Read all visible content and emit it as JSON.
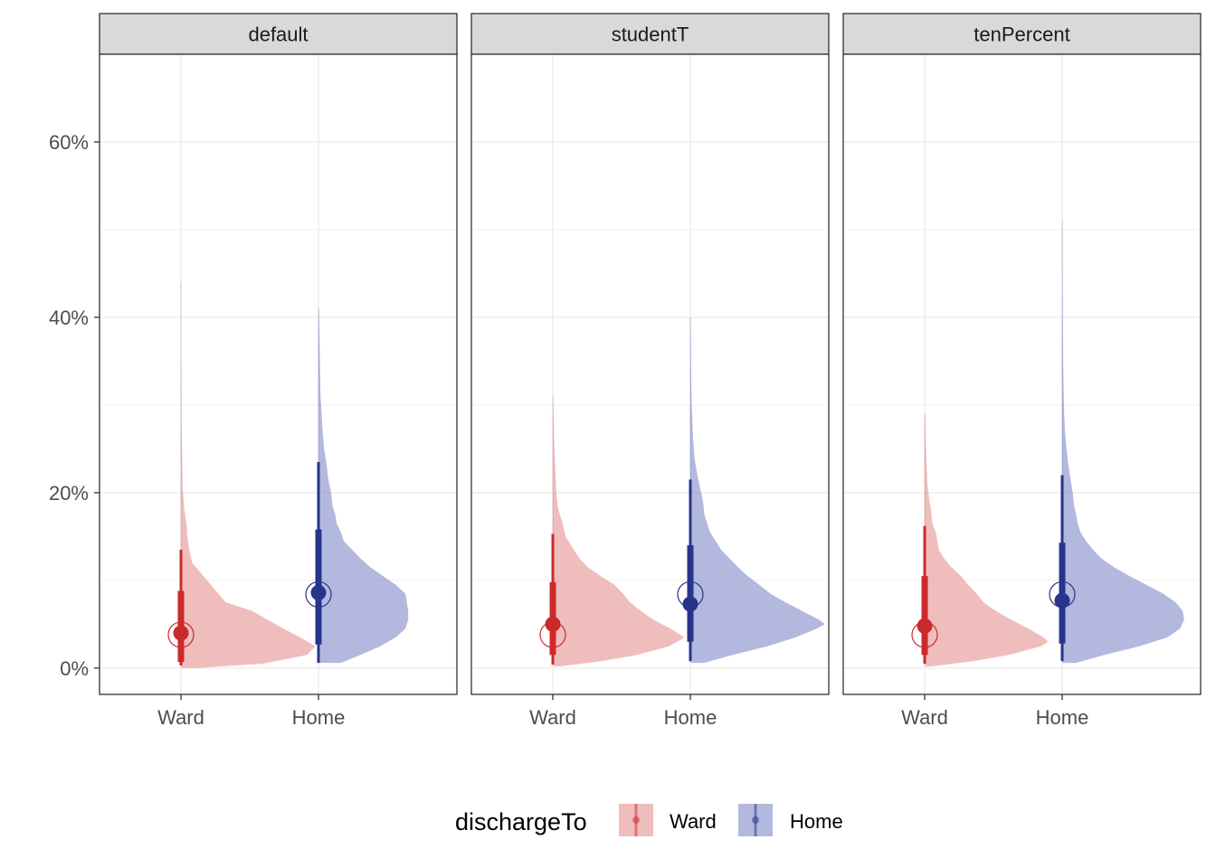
{
  "chart_data": {
    "type": "halfeye",
    "y_axis": {
      "range": [
        -3,
        70
      ],
      "major_ticks": [
        0,
        20,
        40,
        60
      ],
      "minor_ticks": [
        10,
        30,
        50
      ],
      "tick_labels": [
        "0%",
        "20%",
        "40%",
        "60%"
      ]
    },
    "categories": [
      "Ward",
      "Home"
    ],
    "grid": true,
    "legend": {
      "title": "dischargeTo",
      "position": "bottom",
      "entries": [
        {
          "label": "Ward",
          "color": "#cc2a2a",
          "fill": "#e89a9a"
        },
        {
          "label": "Home",
          "color": "#27348b",
          "fill": "#8b92cc"
        }
      ]
    },
    "panels": [
      {
        "name": "default",
        "series": [
          {
            "name": "Ward",
            "median": 4.0,
            "observed": 3.8,
            "interval_66": [
              0.7,
              8.8
            ],
            "interval_95": [
              0.3,
              13.5
            ],
            "tail_max": 44,
            "density": [
              [
                0,
                0.1
              ],
              [
                0.5,
                0.58
              ],
              [
                1.5,
                0.9
              ],
              [
                2.5,
                0.96
              ],
              [
                3.5,
                0.85
              ],
              [
                4.5,
                0.73
              ],
              [
                5.5,
                0.62
              ],
              [
                6.5,
                0.51
              ],
              [
                7.5,
                0.32
              ],
              [
                9,
                0.24
              ],
              [
                10.5,
                0.16
              ],
              [
                12,
                0.08
              ],
              [
                13.5,
                0.06
              ],
              [
                15,
                0.045
              ],
              [
                16.5,
                0.04
              ],
              [
                18,
                0.025
              ],
              [
                19,
                0.02
              ],
              [
                20.5,
                0.012
              ],
              [
                22.5,
                0.01
              ],
              [
                25,
                0.008
              ],
              [
                28,
                0.004
              ],
              [
                33,
                0.002
              ],
              [
                38,
                0.001
              ],
              [
                44,
                0.0005
              ]
            ]
          },
          {
            "name": "Home",
            "median": 8.6,
            "observed": 8.4,
            "interval_66": [
              2.7,
              15.8
            ],
            "interval_95": [
              0.6,
              23.5
            ],
            "tail_max": 41,
            "density": [
              [
                0.6,
                0.16
              ],
              [
                1.5,
                0.3
              ],
              [
                2.5,
                0.44
              ],
              [
                3.5,
                0.55
              ],
              [
                4.5,
                0.62
              ],
              [
                5.5,
                0.64
              ],
              [
                6.5,
                0.64
              ],
              [
                7.5,
                0.63
              ],
              [
                8.5,
                0.62
              ],
              [
                9.5,
                0.55
              ],
              [
                10.5,
                0.46
              ],
              [
                11.5,
                0.37
              ],
              [
                12.5,
                0.3
              ],
              [
                13.5,
                0.24
              ],
              [
                14.5,
                0.18
              ],
              [
                15.5,
                0.16
              ],
              [
                16.5,
                0.13
              ],
              [
                17.5,
                0.12
              ],
              [
                18.5,
                0.1
              ],
              [
                20,
                0.09
              ],
              [
                21.5,
                0.07
              ],
              [
                23,
                0.06
              ],
              [
                25,
                0.04
              ],
              [
                27,
                0.03
              ],
              [
                29,
                0.022
              ],
              [
                31,
                0.015
              ],
              [
                33,
                0.012
              ],
              [
                35,
                0.01
              ],
              [
                37,
                0.008
              ],
              [
                39,
                0.005
              ],
              [
                41,
                0.002
              ]
            ]
          }
        ]
      },
      {
        "name": "studentT",
        "series": [
          {
            "name": "Ward",
            "median": 5.0,
            "observed": 3.8,
            "interval_66": [
              1.5,
              9.8
            ],
            "interval_95": [
              0.4,
              15.3
            ],
            "tail_max": 31,
            "density": [
              [
                0.2,
                0.05
              ],
              [
                0.8,
                0.35
              ],
              [
                1.5,
                0.6
              ],
              [
                2.5,
                0.83
              ],
              [
                3.5,
                0.94
              ],
              [
                4.5,
                0.84
              ],
              [
                5.5,
                0.72
              ],
              [
                6.5,
                0.63
              ],
              [
                7.5,
                0.55
              ],
              [
                8.5,
                0.5
              ],
              [
                9.5,
                0.44
              ],
              [
                10.5,
                0.34
              ],
              [
                11.5,
                0.25
              ],
              [
                12.5,
                0.19
              ],
              [
                13.5,
                0.15
              ],
              [
                15,
                0.09
              ],
              [
                16.5,
                0.07
              ],
              [
                17.5,
                0.05
              ],
              [
                18.5,
                0.035
              ],
              [
                20,
                0.025
              ],
              [
                22,
                0.02
              ],
              [
                24,
                0.014
              ],
              [
                26,
                0.01
              ],
              [
                28,
                0.006
              ],
              [
                31,
                0.002
              ]
            ]
          },
          {
            "name": "Home",
            "median": 7.3,
            "observed": 8.4,
            "interval_66": [
              3.0,
              14.0
            ],
            "interval_95": [
              0.8,
              21.5
            ],
            "tail_max": 40,
            "density": [
              [
                0.6,
                0.1
              ],
              [
                1.5,
                0.3
              ],
              [
                2.5,
                0.55
              ],
              [
                3.5,
                0.75
              ],
              [
                4.5,
                0.9
              ],
              [
                5,
                0.96
              ],
              [
                5.5,
                0.92
              ],
              [
                6.5,
                0.8
              ],
              [
                7.5,
                0.68
              ],
              [
                8.5,
                0.57
              ],
              [
                9.5,
                0.49
              ],
              [
                10.5,
                0.41
              ],
              [
                11.5,
                0.34
              ],
              [
                12.5,
                0.28
              ],
              [
                13.5,
                0.22
              ],
              [
                14.5,
                0.18
              ],
              [
                15.5,
                0.14
              ],
              [
                16.5,
                0.12
              ],
              [
                17.5,
                0.1
              ],
              [
                19,
                0.09
              ],
              [
                20.5,
                0.07
              ],
              [
                22,
                0.05
              ],
              [
                24,
                0.03
              ],
              [
                26,
                0.02
              ],
              [
                28,
                0.015
              ],
              [
                30,
                0.01
              ],
              [
                33,
                0.006
              ],
              [
                36,
                0.004
              ],
              [
                40,
                0.001
              ]
            ]
          }
        ]
      },
      {
        "name": "tenPercent",
        "series": [
          {
            "name": "Ward",
            "median": 4.8,
            "observed": 3.8,
            "interval_66": [
              1.5,
              10.5
            ],
            "interval_95": [
              0.5,
              16.2
            ],
            "tail_max": 29,
            "density": [
              [
                0.2,
                0.05
              ],
              [
                0.8,
                0.35
              ],
              [
                1.5,
                0.6
              ],
              [
                2.5,
                0.83
              ],
              [
                3,
                0.88
              ],
              [
                3.5,
                0.85
              ],
              [
                4.5,
                0.74
              ],
              [
                5.5,
                0.62
              ],
              [
                6.5,
                0.51
              ],
              [
                7.5,
                0.42
              ],
              [
                8.5,
                0.37
              ],
              [
                9.5,
                0.31
              ],
              [
                10.5,
                0.26
              ],
              [
                11.5,
                0.19
              ],
              [
                12.5,
                0.14
              ],
              [
                13.5,
                0.1
              ],
              [
                14.5,
                0.09
              ],
              [
                15.5,
                0.08
              ],
              [
                16.5,
                0.055
              ],
              [
                18,
                0.045
              ],
              [
                19.5,
                0.03
              ],
              [
                21,
                0.02
              ],
              [
                23,
                0.015
              ],
              [
                25,
                0.01
              ],
              [
                27,
                0.006
              ],
              [
                29,
                0.003
              ]
            ]
          },
          {
            "name": "Home",
            "median": 7.7,
            "observed": 8.4,
            "interval_66": [
              2.8,
              14.3
            ],
            "interval_95": [
              0.8,
              22.0
            ],
            "tail_max": 51,
            "density": [
              [
                0.6,
                0.1
              ],
              [
                1.5,
                0.3
              ],
              [
                2.5,
                0.55
              ],
              [
                3.5,
                0.75
              ],
              [
                4.5,
                0.84
              ],
              [
                5.5,
                0.87
              ],
              [
                6.5,
                0.86
              ],
              [
                7.5,
                0.81
              ],
              [
                8.5,
                0.72
              ],
              [
                9.5,
                0.6
              ],
              [
                10.5,
                0.48
              ],
              [
                11.5,
                0.37
              ],
              [
                12.5,
                0.28
              ],
              [
                13.5,
                0.22
              ],
              [
                14.5,
                0.17
              ],
              [
                15.5,
                0.13
              ],
              [
                16.5,
                0.11
              ],
              [
                17.5,
                0.1
              ],
              [
                18.5,
                0.085
              ],
              [
                20,
                0.075
              ],
              [
                21.5,
                0.06
              ],
              [
                23,
                0.045
              ],
              [
                25,
                0.03
              ],
              [
                27,
                0.02
              ],
              [
                29,
                0.014
              ],
              [
                32,
                0.01
              ],
              [
                35,
                0.007
              ],
              [
                38,
                0.005
              ],
              [
                42,
                0.003
              ],
              [
                46,
                0.002
              ],
              [
                51,
                0.001
              ]
            ]
          }
        ]
      }
    ]
  }
}
